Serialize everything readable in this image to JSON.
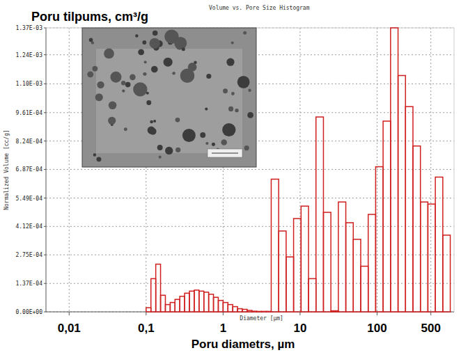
{
  "chart_data": {
    "type": "histogram",
    "title": "Volume vs. Pore Size Histogram",
    "ylabel": "Poru tilpums, cm³/g",
    "xlabel": "Poru diametrs, µm",
    "annotations": [
      "Normalized Volume [cc/g]",
      "Diameter [µm]"
    ],
    "bins": [
      0.1,
      0.1155,
      0.1334,
      0.154,
      0.1778,
      0.2054,
      0.2371,
      0.2738,
      0.3162,
      0.3652,
      0.4217,
      0.487,
      0.5623,
      0.6494,
      0.7499,
      0.866,
      1,
      1.155,
      1.334,
      1.54,
      1.778,
      2.054,
      2.371,
      2.738,
      3.162,
      3.652,
      4.217,
      5.271,
      6.589,
      8.236,
      10.3,
      12.87,
      16.09,
      20.11,
      25.13,
      31.42,
      39.27,
      49.09,
      61.36,
      76.7,
      95.88,
      119.8,
      149.8,
      187.3,
      234.1,
      292.6,
      365.8,
      457.2,
      571.5,
      714.4,
      893
    ],
    "values": [
      2e-05,
      0.00016,
      0.00023,
      8e-05,
      3.5e-05,
      4.5e-05,
      6e-05,
      7.5e-05,
      9e-05,
      0.0001,
      0.000105,
      0.0001,
      9.5e-05,
      8.5e-05,
      7e-05,
      5.5e-05,
      4.5e-05,
      3.5e-05,
      2.5e-05,
      1.5e-05,
      1.2e-05,
      7e-06,
      3e-06,
      2e-06,
      2e-06,
      2e-06,
      0.00064,
      0.00039,
      0.000265,
      0.00045,
      0.00051,
      0.00016,
      0.00094,
      0.00048,
      5e-06,
      0.00053,
      0.00043,
      0.00035,
      0.00022,
      0.00047,
      0.0007,
      0.00092,
      0.00137,
      0.00114,
      0.00099,
      0.0008,
      0.00053,
      0.00052,
      0.00065,
      0.00037
    ],
    "color": "#d01f1f",
    "log": "x",
    "grid": true,
    "xlim": [
      0.005,
      1000
    ],
    "xticks": [
      {
        "value": 0.01,
        "label": "0,01"
      },
      {
        "value": 0.1,
        "label": "0,1"
      },
      1,
      10,
      100,
      500
    ],
    "ylim": [
      0,
      0.00137
    ],
    "yticks": [
      {
        "value": 0,
        "label": "0.00E+00"
      },
      {
        "value": 0.000137,
        "label": "1.37E-04"
      },
      {
        "value": 0.000275,
        "label": "2.75E-04"
      },
      {
        "value": 0.000412,
        "label": "4.12E-04"
      },
      {
        "value": 0.000549,
        "label": "5.49E-04"
      },
      {
        "value": 0.000687,
        "label": "6.87E-04"
      },
      {
        "value": 0.000824,
        "label": "8.24E-04"
      },
      {
        "value": 0.000961,
        "label": "9.61E-04"
      },
      {
        "value": 0.0011,
        "label": "1.10E-03"
      },
      {
        "value": 0.00124,
        "label": "1.24E-03"
      },
      {
        "value": 0.00137,
        "label": "1.37E-03"
      }
    ]
  }
}
